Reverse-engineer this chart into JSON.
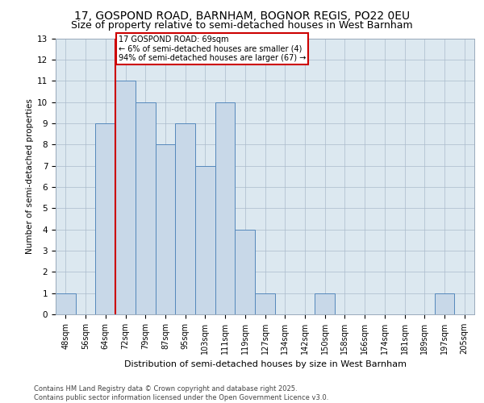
{
  "title_line1": "17, GOSPOND ROAD, BARNHAM, BOGNOR REGIS, PO22 0EU",
  "title_line2": "Size of property relative to semi-detached houses in West Barnham",
  "xlabel": "Distribution of semi-detached houses by size in West Barnham",
  "ylabel": "Number of semi-detached properties",
  "footer": "Contains HM Land Registry data © Crown copyright and database right 2025.\nContains public sector information licensed under the Open Government Licence v3.0.",
  "bin_labels": [
    "48sqm",
    "56sqm",
    "64sqm",
    "72sqm",
    "79sqm",
    "87sqm",
    "95sqm",
    "103sqm",
    "111sqm",
    "119sqm",
    "127sqm",
    "134sqm",
    "142sqm",
    "150sqm",
    "158sqm",
    "166sqm",
    "174sqm",
    "181sqm",
    "189sqm",
    "197sqm",
    "205sqm"
  ],
  "bar_heights": [
    1,
    0,
    9,
    11,
    10,
    8,
    9,
    7,
    10,
    4,
    1,
    0,
    0,
    1,
    0,
    0,
    0,
    0,
    0,
    1,
    0
  ],
  "bar_color": "#c8d8e8",
  "bar_edge_color": "#5588bb",
  "subject_label": "17 GOSPOND ROAD: 69sqm",
  "annotation_line1": "← 6% of semi-detached houses are smaller (4)",
  "annotation_line2": "94% of semi-detached houses are larger (67) →",
  "annotation_box_color": "#cc0000",
  "ylim": [
    0,
    13
  ],
  "yticks": [
    0,
    1,
    2,
    3,
    4,
    5,
    6,
    7,
    8,
    9,
    10,
    11,
    12,
    13
  ],
  "grid_color": "#aabbcc",
  "background_color": "#dce8f0",
  "subject_line_color": "#cc0000",
  "title1_fontsize": 10,
  "title2_fontsize": 9
}
